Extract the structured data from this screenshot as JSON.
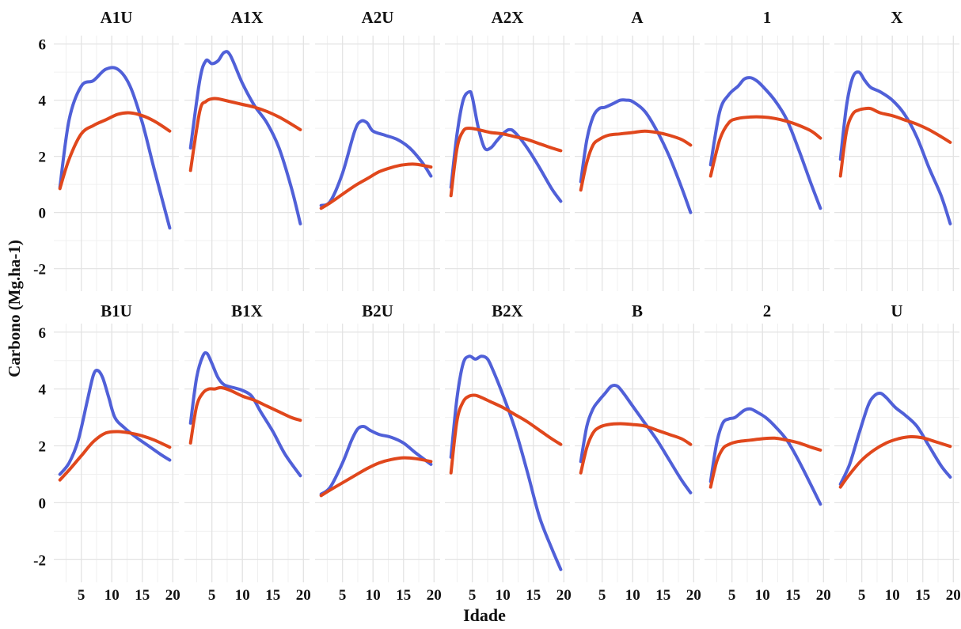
{
  "chart_data": {
    "type": "line",
    "xlabel": "Idade",
    "ylabel": "Carbono (Mg.ha-1)",
    "xlim": [
      0.5,
      21
    ],
    "ylim": [
      -2.8,
      6.3
    ],
    "x_ticks": [
      5,
      10,
      15,
      20
    ],
    "y_ticks": [
      -2,
      0,
      2,
      4,
      6
    ],
    "grid": true,
    "legend": "none",
    "series_colors": [
      "#5060d8",
      "#e0471c"
    ],
    "panels": [
      {
        "title": "A1U",
        "series": [
          {
            "x": [
              1.5,
              3,
              5,
              7,
              9,
              11,
              13,
              15,
              17,
              19.5
            ],
            "y": [
              0.9,
              3.3,
              4.5,
              4.7,
              5.1,
              5.1,
              4.5,
              3.2,
              1.5,
              -0.55
            ]
          },
          {
            "x": [
              1.5,
              3,
              5,
              7,
              9,
              11,
              13,
              15,
              17,
              19.5
            ],
            "y": [
              0.85,
              1.9,
              2.8,
              3.1,
              3.3,
              3.5,
              3.55,
              3.45,
              3.25,
              2.9
            ]
          }
        ]
      },
      {
        "title": "A1X",
        "series": [
          {
            "x": [
              1.5,
              3,
              4,
              5,
              6,
              7,
              8,
              10,
              12,
              14,
              16,
              18,
              19.5
            ],
            "y": [
              2.3,
              4.7,
              5.4,
              5.3,
              5.4,
              5.7,
              5.6,
              4.6,
              3.8,
              3.2,
              2.3,
              0.9,
              -0.4
            ]
          },
          {
            "x": [
              1.5,
              3,
              4,
              5,
              6,
              8,
              10,
              12,
              14,
              16,
              18,
              19.5
            ],
            "y": [
              1.5,
              3.6,
              3.95,
              4.05,
              4.05,
              3.95,
              3.85,
              3.75,
              3.6,
              3.4,
              3.15,
              2.95
            ]
          }
        ]
      },
      {
        "title": "A2U",
        "series": [
          {
            "x": [
              1.5,
              3,
              5,
              7,
              8,
              9,
              10,
              12,
              14,
              16,
              18,
              19.5
            ],
            "y": [
              0.25,
              0.4,
              1.4,
              2.9,
              3.25,
              3.2,
              2.9,
              2.75,
              2.6,
              2.3,
              1.8,
              1.3
            ]
          },
          {
            "x": [
              1.5,
              3,
              5,
              7,
              9,
              11,
              13,
              15,
              17,
              19.5
            ],
            "y": [
              0.15,
              0.35,
              0.65,
              0.95,
              1.2,
              1.45,
              1.6,
              1.7,
              1.72,
              1.62
            ]
          }
        ]
      },
      {
        "title": "A2X",
        "series": [
          {
            "x": [
              1.5,
              2.5,
              3.5,
              4.5,
              5,
              6,
              7,
              8,
              9,
              10,
              11,
              12,
              14,
              16,
              18,
              19.5
            ],
            "y": [
              0.9,
              2.8,
              4.0,
              4.3,
              4.1,
              3.0,
              2.3,
              2.3,
              2.55,
              2.8,
              2.95,
              2.85,
              2.3,
              1.6,
              0.85,
              0.4
            ]
          },
          {
            "x": [
              1.5,
              2.5,
              3.5,
              4.5,
              6,
              8,
              10,
              12,
              14,
              16,
              18,
              19.5
            ],
            "y": [
              0.6,
              2.3,
              2.9,
              3.0,
              2.95,
              2.85,
              2.8,
              2.7,
              2.6,
              2.45,
              2.3,
              2.2
            ]
          }
        ]
      },
      {
        "title": "A",
        "series": [
          {
            "x": [
              1.5,
              2.5,
              3.5,
              4.5,
              5.5,
              7,
              8,
              9,
              10,
              12,
              14,
              16,
              18,
              19.5
            ],
            "y": [
              1.1,
              2.6,
              3.4,
              3.7,
              3.75,
              3.9,
              4.0,
              4.0,
              3.95,
              3.6,
              2.9,
              2.0,
              0.9,
              0.0
            ]
          },
          {
            "x": [
              1.5,
              2.5,
              3.5,
              4.5,
              6,
              8,
              10,
              12,
              14,
              16,
              18,
              19.5
            ],
            "y": [
              0.8,
              1.8,
              2.4,
              2.6,
              2.75,
              2.8,
              2.85,
              2.9,
              2.85,
              2.75,
              2.6,
              2.4
            ]
          }
        ]
      },
      {
        "title": "1",
        "series": [
          {
            "x": [
              1.5,
              3,
              4.5,
              6,
              7,
              8,
              9,
              10,
              12,
              14,
              16,
              18,
              19.5
            ],
            "y": [
              1.7,
              3.6,
              4.2,
              4.5,
              4.75,
              4.8,
              4.7,
              4.5,
              4.0,
              3.3,
              2.2,
              1.0,
              0.15
            ]
          },
          {
            "x": [
              1.5,
              3,
              4.5,
              6,
              8,
              10,
              12,
              14,
              16,
              18,
              19.5
            ],
            "y": [
              1.3,
              2.6,
              3.2,
              3.35,
              3.4,
              3.4,
              3.35,
              3.25,
              3.1,
              2.9,
              2.65
            ]
          }
        ]
      },
      {
        "title": "X",
        "series": [
          {
            "x": [
              1.5,
              2.5,
              3.5,
              4.5,
              5.5,
              6.5,
              8,
              10,
              12,
              14,
              16,
              18,
              19.5
            ],
            "y": [
              1.9,
              3.8,
              4.8,
              5.0,
              4.7,
              4.45,
              4.3,
              4.0,
              3.5,
              2.7,
              1.6,
              0.6,
              -0.4
            ]
          },
          {
            "x": [
              1.5,
              2.5,
              3.5,
              4.5,
              5.5,
              6.5,
              8,
              10,
              12,
              14,
              16,
              18,
              19.5
            ],
            "y": [
              1.3,
              2.9,
              3.5,
              3.65,
              3.7,
              3.7,
              3.55,
              3.45,
              3.3,
              3.15,
              2.95,
              2.7,
              2.5
            ]
          }
        ]
      },
      {
        "title": "B1U",
        "series": [
          {
            "x": [
              1.5,
              3,
              4.5,
              6,
              7,
              7.7,
              8.5,
              9.5,
              10.5,
              12,
              14,
              16,
              18,
              19.5
            ],
            "y": [
              1.0,
              1.4,
              2.2,
              3.6,
              4.5,
              4.65,
              4.4,
              3.7,
              3.0,
              2.65,
              2.3,
              2.0,
              1.7,
              1.5
            ]
          },
          {
            "x": [
              1.5,
              3,
              5,
              7,
              9,
              11,
              13,
              15,
              17,
              19.5
            ],
            "y": [
              0.8,
              1.15,
              1.65,
              2.15,
              2.45,
              2.5,
              2.45,
              2.35,
              2.2,
              1.95
            ]
          }
        ]
      },
      {
        "title": "B1X",
        "series": [
          {
            "x": [
              1.5,
              2.5,
              3.5,
              4.2,
              5,
              6,
              7,
              8.5,
              10,
              11.5,
              13,
              15,
              17,
              19.5
            ],
            "y": [
              2.8,
              4.4,
              5.15,
              5.25,
              4.9,
              4.4,
              4.15,
              4.05,
              3.95,
              3.75,
              3.2,
              2.5,
              1.7,
              0.95
            ]
          },
          {
            "x": [
              1.5,
              2.5,
              3.5,
              4.5,
              5.5,
              6.5,
              8,
              10,
              12,
              14,
              16,
              18,
              19.5
            ],
            "y": [
              2.1,
              3.4,
              3.85,
              4.0,
              4.0,
              4.05,
              3.95,
              3.75,
              3.6,
              3.4,
              3.2,
              3.0,
              2.9
            ]
          }
        ]
      },
      {
        "title": "B2U",
        "series": [
          {
            "x": [
              1.5,
              3,
              5,
              6.5,
              7.5,
              8.5,
              9.5,
              11,
              13,
              15,
              17,
              19.5
            ],
            "y": [
              0.3,
              0.55,
              1.4,
              2.2,
              2.6,
              2.68,
              2.55,
              2.4,
              2.3,
              2.1,
              1.75,
              1.35
            ]
          },
          {
            "x": [
              1.5,
              3,
              5,
              7,
              9,
              11,
              13,
              15,
              17,
              19.5
            ],
            "y": [
              0.25,
              0.45,
              0.7,
              0.95,
              1.2,
              1.4,
              1.52,
              1.58,
              1.55,
              1.45
            ]
          }
        ]
      },
      {
        "title": "B2X",
        "series": [
          {
            "x": [
              1.5,
              2.5,
              3.5,
              4.5,
              5.5,
              6.5,
              7.5,
              8.5,
              10,
              12,
              14,
              16,
              18,
              19.5
            ],
            "y": [
              1.6,
              3.7,
              4.9,
              5.15,
              5.05,
              5.15,
              5.05,
              4.6,
              3.8,
              2.6,
              1.1,
              -0.5,
              -1.6,
              -2.35
            ]
          },
          {
            "x": [
              1.5,
              2.5,
              3.5,
              4.5,
              5.5,
              6.5,
              8,
              10,
              12,
              14,
              16,
              18,
              19.5
            ],
            "y": [
              1.05,
              2.9,
              3.55,
              3.75,
              3.78,
              3.7,
              3.55,
              3.35,
              3.1,
              2.85,
              2.55,
              2.25,
              2.05
            ]
          }
        ]
      },
      {
        "title": "B",
        "series": [
          {
            "x": [
              1.5,
              2.5,
              3.5,
              4.5,
              5.5,
              6.5,
              7.5,
              8.5,
              10,
              12,
              14,
              16,
              18,
              19.5
            ],
            "y": [
              1.45,
              2.7,
              3.3,
              3.6,
              3.85,
              4.1,
              4.1,
              3.85,
              3.4,
              2.8,
              2.2,
              1.5,
              0.8,
              0.35
            ]
          },
          {
            "x": [
              1.5,
              2.5,
              3.5,
              4.5,
              6,
              8,
              10,
              12,
              14,
              16,
              18,
              19.5
            ],
            "y": [
              1.05,
              1.95,
              2.45,
              2.65,
              2.75,
              2.78,
              2.75,
              2.7,
              2.55,
              2.4,
              2.25,
              2.05
            ]
          }
        ]
      },
      {
        "title": "2",
        "series": [
          {
            "x": [
              1.5,
              2.5,
              3.5,
              4.5,
              5.5,
              7,
              8,
              9,
              10.5,
              12,
              14,
              16,
              18,
              19.5
            ],
            "y": [
              0.75,
              2.1,
              2.8,
              2.95,
              3.0,
              3.25,
              3.3,
              3.2,
              3.0,
              2.7,
              2.2,
              1.45,
              0.6,
              -0.05
            ]
          },
          {
            "x": [
              1.5,
              2.5,
              3.5,
              4.5,
              6,
              8,
              10,
              12,
              14,
              16,
              18,
              19.5
            ],
            "y": [
              0.55,
              1.45,
              1.9,
              2.05,
              2.15,
              2.2,
              2.25,
              2.27,
              2.2,
              2.1,
              1.95,
              1.85
            ]
          }
        ]
      },
      {
        "title": "U",
        "series": [
          {
            "x": [
              1.5,
              3,
              4.5,
              6,
              7,
              8,
              9,
              10.5,
              12,
              14,
              16,
              18,
              19.5
            ],
            "y": [
              0.65,
              1.35,
              2.4,
              3.4,
              3.75,
              3.85,
              3.7,
              3.35,
              3.1,
              2.7,
              2.0,
              1.3,
              0.9
            ]
          },
          {
            "x": [
              1.5,
              3,
              5,
              7,
              9,
              11,
              13,
              15,
              17,
              19.5
            ],
            "y": [
              0.55,
              1.0,
              1.5,
              1.85,
              2.1,
              2.25,
              2.32,
              2.28,
              2.15,
              1.98
            ]
          }
        ]
      }
    ]
  }
}
